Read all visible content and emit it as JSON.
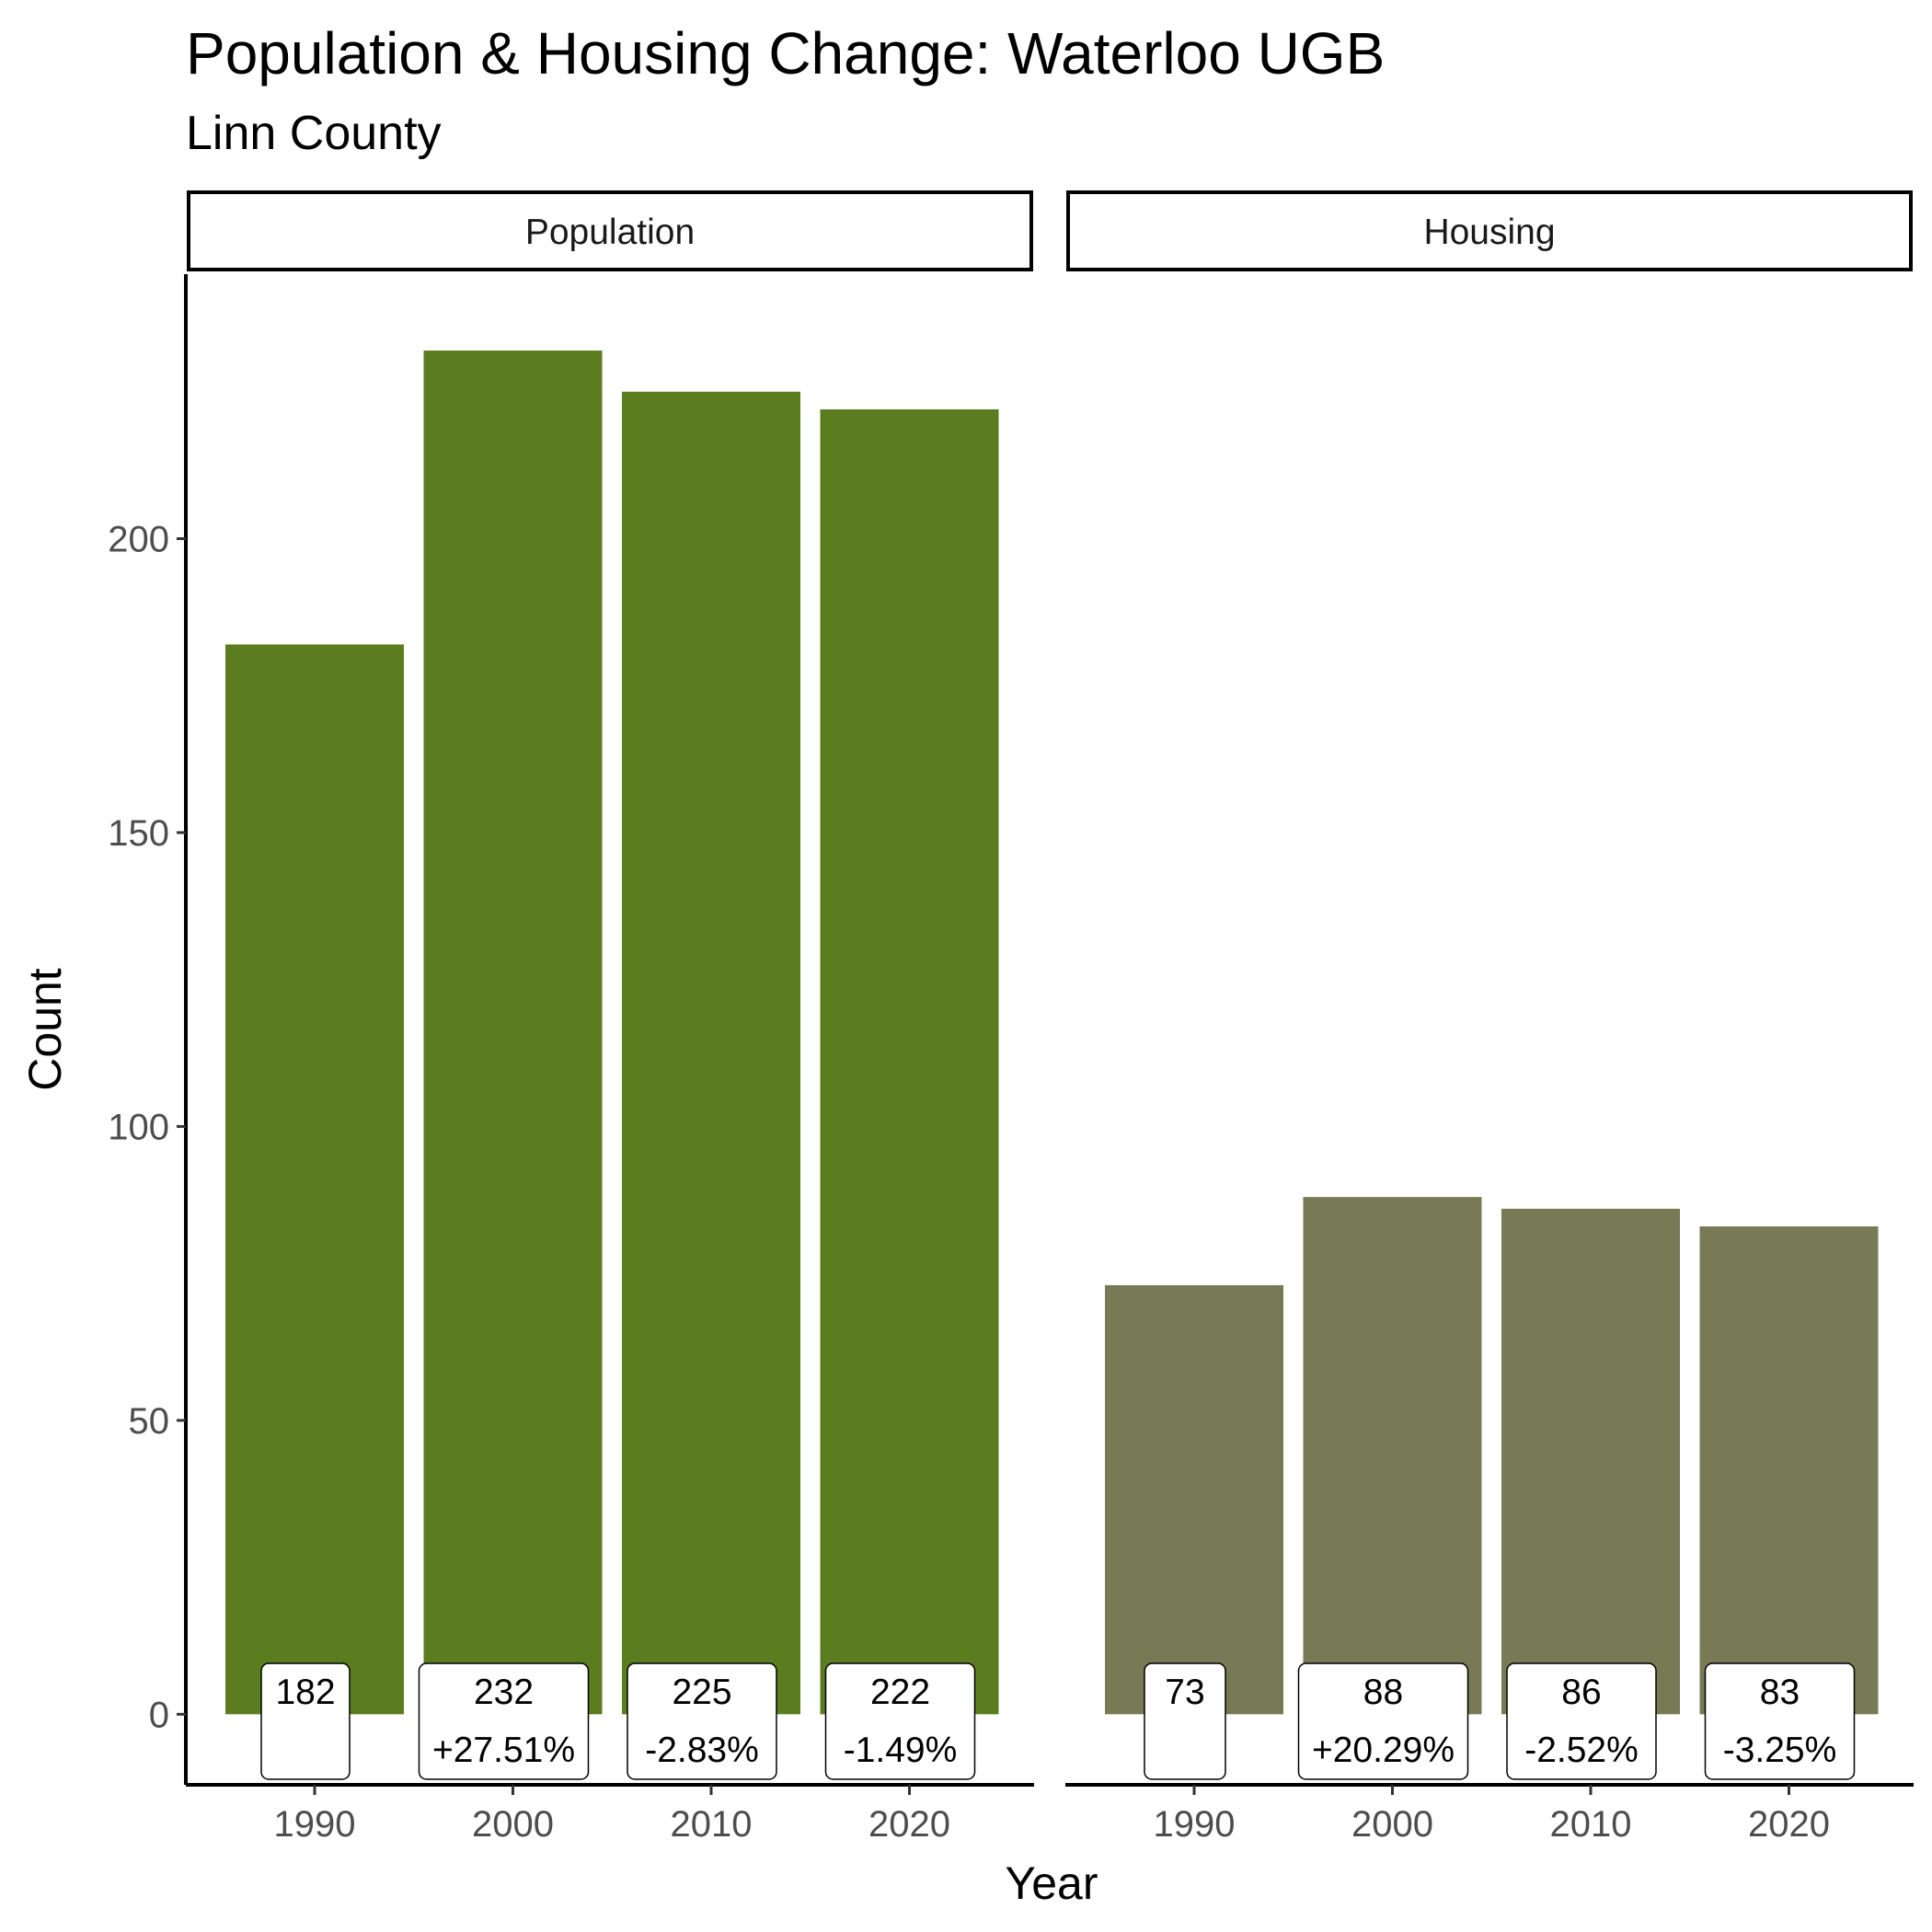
{
  "chart_data": {
    "type": "bar",
    "title": "Population & Housing Change: Waterloo UGB",
    "subtitle": "Linn County",
    "xlabel": "Year",
    "ylabel": "Count",
    "categories": [
      "1990",
      "2000",
      "2010",
      "2020"
    ],
    "ylim": [
      -12,
      245
    ],
    "yticks": [
      0,
      50,
      100,
      150,
      200
    ],
    "grid": false,
    "legend": "none",
    "panels": [
      {
        "name": "Population",
        "color": "#5b7d1f",
        "values": [
          182,
          232,
          225,
          222
        ],
        "value_labels": [
          "182",
          "232",
          "225",
          "222"
        ],
        "change_labels": [
          "",
          "+27.51%",
          "-2.83%",
          "-1.49%"
        ]
      },
      {
        "name": "Housing",
        "color": "#787a55",
        "values": [
          73,
          88,
          86,
          83
        ],
        "value_labels": [
          "73",
          "88",
          "86",
          "83"
        ],
        "change_labels": [
          "",
          "+20.29%",
          "-2.52%",
          "-3.25%"
        ]
      }
    ]
  }
}
